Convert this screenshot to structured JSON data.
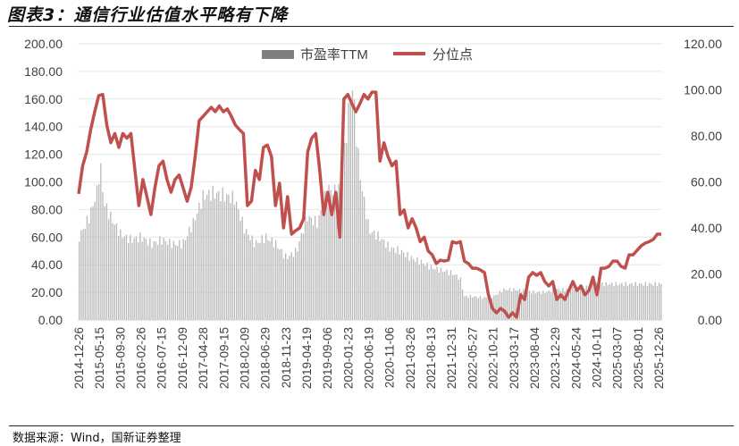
{
  "title": "图表3：通信行业估值水平略有下降",
  "source": "数据来源：Wind，国新证券整理",
  "chart_data": {
    "type": "bar+line",
    "x_ticks": [
      "2014-12-26",
      "2015-05-15",
      "2015-09-30",
      "2016-02-26",
      "2016-07-15",
      "2016-12-09",
      "2017-04-28",
      "2017-09-15",
      "2018-02-09",
      "2018-06-29",
      "2018-11-23",
      "2019-04-19",
      "2019-09-06",
      "2020-01-23",
      "2020-06-19",
      "2020-11-06",
      "2021-03-26",
      "2021-08-13",
      "2021-12-31",
      "2022-05-27",
      "2022-10-21",
      "2023-03-17",
      "2023-08-04",
      "2023-12-29",
      "2024-05-24",
      "2024-10-11",
      "2025-03-07",
      "2025-08-01",
      "2025-12-26"
    ],
    "left_axis": {
      "ticks": [
        "0.00",
        "20.00",
        "40.00",
        "60.00",
        "80.00",
        "100.00",
        "120.00",
        "140.00",
        "160.00",
        "180.00",
        "200.00"
      ],
      "ylim": [
        0,
        200
      ]
    },
    "right_axis": {
      "ticks": [
        "0.00",
        "20.00",
        "40.00",
        "60.00",
        "80.00",
        "100.00",
        "120.00"
      ],
      "ylim": [
        0,
        120
      ]
    },
    "legend": [
      "市盈率TTM",
      "分位点"
    ],
    "legend_position": "top",
    "colors": {
      "pe": "#b8b8b8",
      "pe_legend": "#7f7f7f",
      "pct": "#c0504d",
      "grid": "#e6e6e6"
    },
    "series": [
      {
        "name": "市盈率TTM",
        "axis": "left",
        "type": "bar",
        "t": [
          0,
          0.5,
          0.9,
          1.0,
          1.2,
          1.5,
          2,
          2.5,
          3,
          3.5,
          4,
          4.5,
          5,
          5.5,
          6,
          6.5,
          7,
          7.5,
          8,
          8.5,
          9,
          9.5,
          10,
          10.5,
          11,
          11.5,
          12,
          12.5,
          12.8,
          13,
          13.2,
          13.4,
          13.6,
          14,
          14.5,
          15,
          15.5,
          16,
          16.5,
          17,
          17.5,
          18,
          18.4,
          18.6,
          19,
          19.5,
          20,
          20.5,
          21,
          21.5,
          22,
          22.5,
          23,
          23.5,
          24,
          24.5,
          25
        ],
        "values": [
          60,
          75,
          95,
          115,
          85,
          75,
          62,
          58,
          60,
          55,
          58,
          55,
          55,
          70,
          90,
          92,
          90,
          88,
          65,
          55,
          60,
          55,
          45,
          50,
          75,
          70,
          95,
          92,
          120,
          150,
          170,
          130,
          100,
          65,
          60,
          52,
          50,
          45,
          42,
          38,
          36,
          34,
          30,
          17,
          17,
          16,
          17,
          22,
          22,
          21,
          20,
          20,
          22,
          22,
          23,
          24,
          26
        ]
      },
      {
        "name": "分位点",
        "axis": "right",
        "type": "line",
        "values": [
          54.8,
          67,
          73,
          82.7,
          90.5,
          97.5,
          98,
          84.7,
          77,
          81,
          75,
          81,
          79,
          81,
          65,
          49.7,
          61,
          53.6,
          45.8,
          57.5,
          67,
          69,
          61,
          55.5,
          61,
          63,
          57.5,
          51.6,
          57.5,
          71,
          86.6,
          88.5,
          90.5,
          92.4,
          90.5,
          93,
          90.5,
          91.7,
          88.5,
          84.7,
          82.7,
          81,
          49.7,
          51.6,
          65,
          61,
          75,
          76,
          71,
          49.7,
          59.4,
          40,
          53.6,
          37.3,
          38.8,
          40,
          44,
          73,
          79,
          81,
          65,
          45.8,
          55.5,
          45.8,
          55.5,
          36,
          96,
          98,
          94,
          90.5,
          94,
          98,
          96,
          99,
          99,
          69,
          77,
          71,
          67,
          69,
          45.8,
          47.8,
          40,
          44,
          40,
          34,
          36,
          30,
          28.3,
          24.5,
          26,
          25.6,
          26,
          34,
          33.4,
          34,
          25.6,
          24.5,
          22.5,
          22.5,
          21.7,
          20.6,
          10.9,
          5,
          3.1,
          5,
          3.9,
          1.2,
          3.1,
          1.2,
          10.9,
          8.9,
          18.6,
          20.6,
          19.4,
          20.6,
          16.7,
          14.8,
          16.7,
          8.9,
          10.9,
          8.9,
          12.8,
          16.7,
          12.8,
          14.8,
          10.9,
          12.8,
          18.6,
          10.9,
          22.5,
          22.5,
          23.3,
          25.6,
          25.6,
          23.3,
          22.5,
          28.3,
          28.3,
          30.3,
          32.2,
          33.4,
          34,
          35,
          37.3,
          37.3
        ]
      }
    ]
  }
}
